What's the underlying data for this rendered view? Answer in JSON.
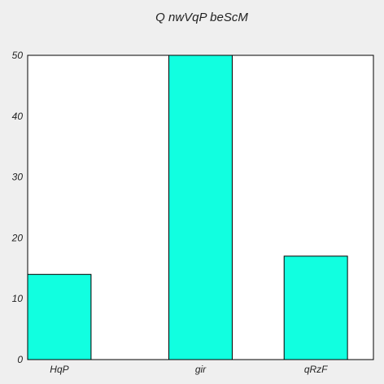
{
  "chart_data": {
    "type": "bar",
    "title": "Q nwVqP beScM",
    "categories": [
      "HqP",
      "gir",
      "qRzF"
    ],
    "values": [
      14,
      50,
      17
    ],
    "ylim": [
      0,
      50
    ],
    "yticks": [
      "0",
      "10",
      "20",
      "30",
      "40",
      "50"
    ],
    "grid": false,
    "legend": "none",
    "bar_color": "#11ffe0",
    "plot_background": "#ffffff",
    "page_background": "#efefef"
  }
}
